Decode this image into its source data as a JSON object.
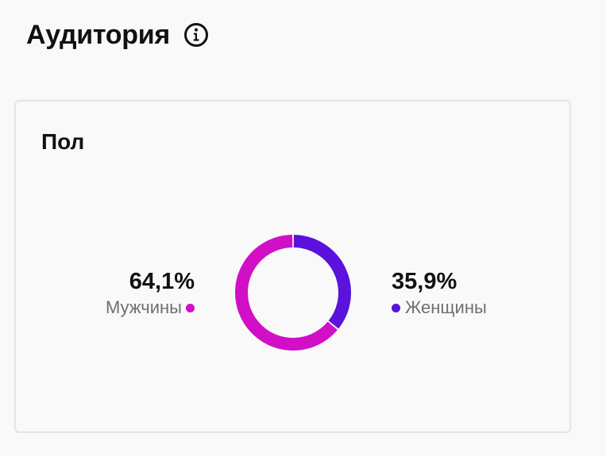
{
  "header": {
    "title": "Аудитория",
    "info_icon": "info-circle-icon"
  },
  "card": {
    "title": "Пол"
  },
  "chart_data": {
    "type": "pie",
    "style": "donut",
    "slices": [
      {
        "label": "Мужчины",
        "value": 64.1,
        "display": "64,1%",
        "color": "#d10fc6"
      },
      {
        "label": "Женщины",
        "value": 35.9,
        "display": "35,9%",
        "color": "#5a12dc"
      }
    ]
  }
}
